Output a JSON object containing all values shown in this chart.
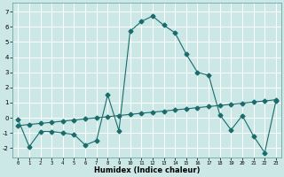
{
  "xlabel": "Humidex (Indice chaleur)",
  "xlim": [
    -0.5,
    23.5
  ],
  "ylim": [
    -2.6,
    7.6
  ],
  "yticks": [
    -2,
    -1,
    0,
    1,
    2,
    3,
    4,
    5,
    6,
    7
  ],
  "xticks": [
    0,
    1,
    2,
    3,
    4,
    5,
    6,
    7,
    8,
    9,
    10,
    11,
    12,
    13,
    14,
    15,
    16,
    17,
    18,
    19,
    20,
    21,
    22,
    23
  ],
  "background_color": "#cce8e6",
  "grid_color": "#ffffff",
  "line_color": "#1a6b6b",
  "curve1_x": [
    0,
    1,
    2,
    3,
    4,
    5,
    6,
    7,
    8,
    9,
    10,
    11,
    12,
    13,
    14,
    15,
    16,
    17,
    18,
    19,
    20,
    21,
    22,
    23
  ],
  "curve1_y": [
    -0.1,
    -1.9,
    -0.9,
    -0.9,
    -1.0,
    -1.1,
    -1.8,
    -1.5,
    1.5,
    -0.85,
    5.7,
    6.35,
    6.7,
    6.1,
    5.6,
    4.2,
    3.0,
    2.8,
    0.2,
    -0.8,
    0.15,
    -1.2,
    -2.3,
    1.1
  ],
  "curve2_x": [
    0,
    1,
    2,
    3,
    4,
    5,
    6,
    7,
    8,
    9,
    10,
    11,
    12,
    13,
    14,
    15,
    16,
    17,
    18,
    19,
    20,
    21,
    22,
    23
  ],
  "curve2_y": [
    -0.52,
    -0.44,
    -0.37,
    -0.3,
    -0.22,
    -0.15,
    -0.07,
    0.0,
    0.07,
    0.15,
    0.22,
    0.3,
    0.37,
    0.44,
    0.52,
    0.59,
    0.67,
    0.74,
    0.81,
    0.89,
    0.96,
    1.04,
    1.11,
    1.19
  ],
  "marker_size": 2.5,
  "linewidth": 0.8
}
